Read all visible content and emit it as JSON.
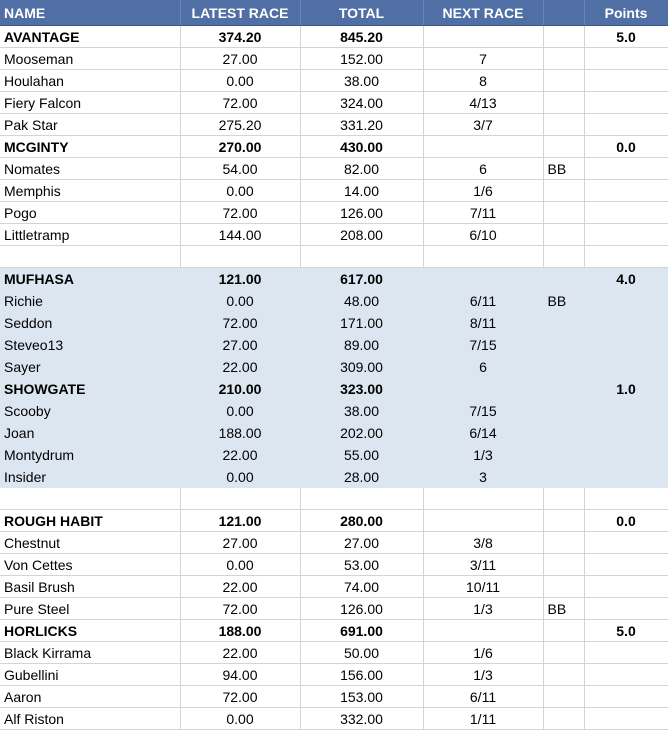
{
  "header": {
    "name": "NAME",
    "latest_race": "LATEST RACE",
    "total": "TOTAL",
    "next_race": "NEXT RACE",
    "bb": "",
    "points": "Points"
  },
  "rows": [
    {
      "kind": "team",
      "shaded": false,
      "name": "AVANTAGE",
      "latest": "374.20",
      "total": "845.20",
      "next": "",
      "bb": "",
      "points": "5.0"
    },
    {
      "kind": "player",
      "shaded": false,
      "name": "Mooseman",
      "latest": "27.00",
      "total": "152.00",
      "next": "7",
      "bb": "",
      "points": ""
    },
    {
      "kind": "player",
      "shaded": false,
      "name": "Houlahan",
      "latest": "0.00",
      "total": "38.00",
      "next": "8",
      "bb": "",
      "points": ""
    },
    {
      "kind": "player",
      "shaded": false,
      "name": "Fiery Falcon",
      "latest": "72.00",
      "total": "324.00",
      "next": "4/13",
      "bb": "",
      "points": ""
    },
    {
      "kind": "player",
      "shaded": false,
      "name": "Pak Star",
      "latest": "275.20",
      "total": "331.20",
      "next": "3/7",
      "bb": "",
      "points": ""
    },
    {
      "kind": "team",
      "shaded": false,
      "name": "MCGINTY",
      "latest": "270.00",
      "total": "430.00",
      "next": "",
      "bb": "",
      "points": "0.0"
    },
    {
      "kind": "player",
      "shaded": false,
      "name": "Nomates",
      "latest": "54.00",
      "total": "82.00",
      "next": "6",
      "bb": "BB",
      "points": ""
    },
    {
      "kind": "player",
      "shaded": false,
      "name": "Memphis",
      "latest": "0.00",
      "total": "14.00",
      "next": "1/6",
      "bb": "",
      "points": ""
    },
    {
      "kind": "player",
      "shaded": false,
      "name": "Pogo",
      "latest": "72.00",
      "total": "126.00",
      "next": "7/11",
      "bb": "",
      "points": ""
    },
    {
      "kind": "player",
      "shaded": false,
      "name": "Littletramp",
      "latest": "144.00",
      "total": "208.00",
      "next": "6/10",
      "bb": "",
      "points": ""
    },
    {
      "kind": "spacer",
      "shaded": false,
      "name": "",
      "latest": "",
      "total": "",
      "next": "",
      "bb": "",
      "points": ""
    },
    {
      "kind": "team",
      "shaded": true,
      "name": "MUFHASA",
      "latest": "121.00",
      "total": "617.00",
      "next": "",
      "bb": "",
      "points": "4.0"
    },
    {
      "kind": "player",
      "shaded": true,
      "name": "Richie",
      "latest": "0.00",
      "total": "48.00",
      "next": "6/11",
      "bb": "BB",
      "points": ""
    },
    {
      "kind": "player",
      "shaded": true,
      "name": "Seddon",
      "latest": "72.00",
      "total": "171.00",
      "next": "8/11",
      "bb": "",
      "points": ""
    },
    {
      "kind": "player",
      "shaded": true,
      "name": "Steveo13",
      "latest": "27.00",
      "total": "89.00",
      "next": "7/15",
      "bb": "",
      "points": ""
    },
    {
      "kind": "player",
      "shaded": true,
      "name": "Sayer",
      "latest": "22.00",
      "total": "309.00",
      "next": "6",
      "bb": "",
      "points": ""
    },
    {
      "kind": "team",
      "shaded": true,
      "name": "SHOWGATE",
      "latest": "210.00",
      "total": "323.00",
      "next": "",
      "bb": "",
      "points": "1.0"
    },
    {
      "kind": "player",
      "shaded": true,
      "name": "Scooby",
      "latest": "0.00",
      "total": "38.00",
      "next": "7/15",
      "bb": "",
      "points": ""
    },
    {
      "kind": "player",
      "shaded": true,
      "name": "Joan",
      "latest": "188.00",
      "total": "202.00",
      "next": "6/14",
      "bb": "",
      "points": ""
    },
    {
      "kind": "player",
      "shaded": true,
      "name": "Montydrum",
      "latest": "22.00",
      "total": "55.00",
      "next": "1/3",
      "bb": "",
      "points": ""
    },
    {
      "kind": "player",
      "shaded": true,
      "name": "Insider",
      "latest": "0.00",
      "total": "28.00",
      "next": "3",
      "bb": "",
      "points": ""
    },
    {
      "kind": "spacer",
      "shaded": false,
      "name": "",
      "latest": "",
      "total": "",
      "next": "",
      "bb": "",
      "points": ""
    },
    {
      "kind": "team",
      "shaded": false,
      "name": "ROUGH HABIT",
      "latest": "121.00",
      "total": "280.00",
      "next": "",
      "bb": "",
      "points": "0.0"
    },
    {
      "kind": "player",
      "shaded": false,
      "name": "Chestnut",
      "latest": "27.00",
      "total": "27.00",
      "next": "3/8",
      "bb": "",
      "points": ""
    },
    {
      "kind": "player",
      "shaded": false,
      "name": "Von Cettes",
      "latest": "0.00",
      "total": "53.00",
      "next": "3/11",
      "bb": "",
      "points": ""
    },
    {
      "kind": "player",
      "shaded": false,
      "name": "Basil Brush",
      "latest": "22.00",
      "total": "74.00",
      "next": "10/11",
      "bb": "",
      "points": ""
    },
    {
      "kind": "player",
      "shaded": false,
      "name": "Pure Steel",
      "latest": "72.00",
      "total": "126.00",
      "next": "1/3",
      "bb": "BB",
      "points": ""
    },
    {
      "kind": "team",
      "shaded": false,
      "name": "HORLICKS",
      "latest": "188.00",
      "total": "691.00",
      "next": "",
      "bb": "",
      "points": "5.0"
    },
    {
      "kind": "player",
      "shaded": false,
      "name": "Black Kirrama",
      "latest": "22.00",
      "total": "50.00",
      "next": "1/6",
      "bb": "",
      "points": ""
    },
    {
      "kind": "player",
      "shaded": false,
      "name": "Gubellini",
      "latest": "94.00",
      "total": "156.00",
      "next": "1/3",
      "bb": "",
      "points": ""
    },
    {
      "kind": "player",
      "shaded": false,
      "name": "Aaron",
      "latest": "72.00",
      "total": "153.00",
      "next": "6/11",
      "bb": "",
      "points": ""
    },
    {
      "kind": "player",
      "shaded": false,
      "name": "Alf Riston",
      "latest": "0.00",
      "total": "332.00",
      "next": "1/11",
      "bb": "",
      "points": ""
    }
  ]
}
